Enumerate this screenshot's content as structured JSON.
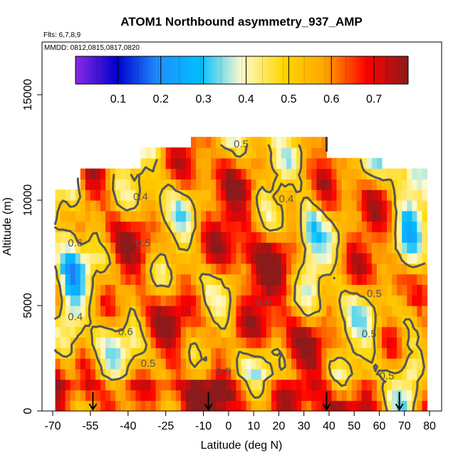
{
  "chart_data": {
    "type": "heatmap",
    "title": "ATOM1 Northbound asymmetry_937_AMP",
    "flights_note": "Flts: 6,7,8,9",
    "dates_note": "MMDD: 0812,0815,0817,0820",
    "xlabel": "Latitude (deg N)",
    "ylabel": "Altitude (m)",
    "xlim": [
      -70,
      80
    ],
    "ylim": [
      0,
      17500
    ],
    "x_ticks": [
      -70,
      -55,
      -40,
      -25,
      -10,
      0,
      10,
      20,
      30,
      40,
      50,
      60,
      70,
      80
    ],
    "y_ticks": [
      0,
      5000,
      10000,
      15000
    ],
    "colorbar": {
      "range": [
        0.0,
        0.78
      ],
      "ticks": [
        0.1,
        0.2,
        0.3,
        0.4,
        0.5,
        0.6,
        0.7
      ],
      "colors": [
        "#8a2be2",
        "#0000cd",
        "#1e90ff",
        "#00bfff",
        "#fffacd",
        "#ffd700",
        "#ffa500",
        "#ff0000",
        "#8b1a1a"
      ]
    },
    "contour_labels": [
      {
        "text": "0.5",
        "x": 5,
        "y": 12500
      },
      {
        "text": "0.5",
        "x": -34,
        "y": 7800
      },
      {
        "text": "0.5",
        "x": -2,
        "y": 1700
      },
      {
        "text": "0.5",
        "x": -32,
        "y": 2100
      },
      {
        "text": "0.5",
        "x": 58,
        "y": 5400
      },
      {
        "text": "0.5",
        "x": 56,
        "y": 3500
      },
      {
        "text": "0.5",
        "x": 63,
        "y": 1500
      },
      {
        "text": "0.4",
        "x": -35,
        "y": 10000
      },
      {
        "text": "0.4",
        "x": 23,
        "y": 9900
      },
      {
        "text": "0.6",
        "x": -41,
        "y": 3600
      },
      {
        "text": "0.6",
        "x": -61,
        "y": 7800
      },
      {
        "text": "0.4",
        "x": -61,
        "y": 4300
      },
      {
        "text": "0.6",
        "x": 14,
        "y": 5000
      }
    ],
    "flight_markers_lat": [
      -54,
      -8,
      39,
      68
    ],
    "flight_marker_top_lat": 39,
    "data_grid": {
      "lat_min": -69,
      "lat_max": 79,
      "alt_min": 0,
      "alt_max": 12800,
      "note": "field values 0.1-0.76 estimated from colors"
    }
  }
}
